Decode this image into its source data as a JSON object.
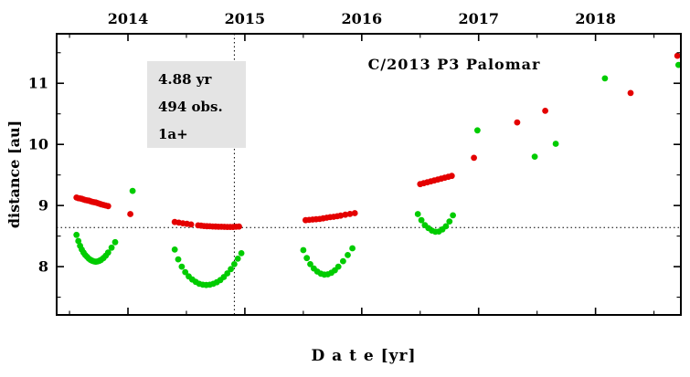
{
  "chart_data": {
    "type": "scatter",
    "title": "C/2013 P3 Palomar",
    "xlabel": "D a t e [yr]",
    "ylabel": "distance [au]",
    "xlim": [
      2013.39,
      2018.73
    ],
    "ylim": [
      7.21,
      11.81
    ],
    "x_ticks": [
      2014,
      2015,
      2016,
      2017,
      2018
    ],
    "x_tick_labels": [
      "2014",
      "2015",
      "2016",
      "2017",
      "2018"
    ],
    "y_ticks": [
      8,
      9,
      10,
      11
    ],
    "y_tick_labels": [
      "8",
      "9",
      "10",
      "11"
    ],
    "x_minor_step": 0.5,
    "y_minor_step": 0.5,
    "grid": false,
    "tick_label_position": {
      "x": "top",
      "y": "left"
    },
    "legend": "none",
    "marker_radius_px": 3.4,
    "reference_lines": [
      {
        "orientation": "vertical",
        "value": 2014.91,
        "style": "dotted"
      },
      {
        "orientation": "horizontal",
        "value": 8.64,
        "style": "dotted"
      }
    ],
    "annotation": {
      "lines": [
        "4.88 yr",
        "494 obs.",
        "1a+"
      ],
      "anchor": {
        "x": 2014.17,
        "y": 11.35
      },
      "background": "#e4e4e4"
    },
    "series": [
      {
        "name": "geocentric-distance",
        "color": "#00cc00",
        "marker": "circle",
        "points": [
          [
            2013.56,
            8.52
          ],
          [
            2013.575,
            8.42
          ],
          [
            2013.59,
            8.34
          ],
          [
            2013.605,
            8.28
          ],
          [
            2013.62,
            8.23
          ],
          [
            2013.635,
            8.19
          ],
          [
            2013.65,
            8.16
          ],
          [
            2013.665,
            8.13
          ],
          [
            2013.68,
            8.11
          ],
          [
            2013.695,
            8.095
          ],
          [
            2013.71,
            8.085
          ],
          [
            2013.725,
            8.08
          ],
          [
            2013.74,
            8.085
          ],
          [
            2013.755,
            8.095
          ],
          [
            2013.77,
            8.11
          ],
          [
            2013.79,
            8.14
          ],
          [
            2013.81,
            8.18
          ],
          [
            2013.83,
            8.23
          ],
          [
            2013.86,
            8.31
          ],
          [
            2013.89,
            8.4
          ],
          [
            2014.04,
            9.24
          ],
          [
            2014.4,
            8.28
          ],
          [
            2014.43,
            8.12
          ],
          [
            2014.46,
            8.0
          ],
          [
            2014.49,
            7.91
          ],
          [
            2014.52,
            7.84
          ],
          [
            2014.55,
            7.79
          ],
          [
            2014.58,
            7.75
          ],
          [
            2014.61,
            7.72
          ],
          [
            2014.64,
            7.705
          ],
          [
            2014.67,
            7.7
          ],
          [
            2014.7,
            7.705
          ],
          [
            2014.73,
            7.72
          ],
          [
            2014.76,
            7.745
          ],
          [
            2014.79,
            7.78
          ],
          [
            2014.82,
            7.83
          ],
          [
            2014.85,
            7.89
          ],
          [
            2014.88,
            7.96
          ],
          [
            2014.91,
            8.04
          ],
          [
            2014.94,
            8.13
          ],
          [
            2014.97,
            8.22
          ],
          [
            2015.5,
            8.27
          ],
          [
            2015.53,
            8.14
          ],
          [
            2015.56,
            8.04
          ],
          [
            2015.59,
            7.97
          ],
          [
            2015.62,
            7.92
          ],
          [
            2015.65,
            7.885
          ],
          [
            2015.68,
            7.87
          ],
          [
            2015.71,
            7.875
          ],
          [
            2015.74,
            7.9
          ],
          [
            2015.77,
            7.94
          ],
          [
            2015.8,
            8.0
          ],
          [
            2015.84,
            8.09
          ],
          [
            2015.88,
            8.19
          ],
          [
            2015.92,
            8.3
          ],
          [
            2016.48,
            8.86
          ],
          [
            2016.51,
            8.76
          ],
          [
            2016.54,
            8.68
          ],
          [
            2016.57,
            8.63
          ],
          [
            2016.6,
            8.59
          ],
          [
            2016.63,
            8.57
          ],
          [
            2016.66,
            8.575
          ],
          [
            2016.69,
            8.61
          ],
          [
            2016.72,
            8.66
          ],
          [
            2016.75,
            8.74
          ],
          [
            2016.78,
            8.84
          ],
          [
            2016.99,
            10.23
          ],
          [
            2017.48,
            9.8
          ],
          [
            2017.66,
            10.01
          ],
          [
            2018.08,
            11.08
          ],
          [
            2018.71,
            11.3
          ]
        ]
      },
      {
        "name": "heliocentric-distance",
        "color": "#e40000",
        "marker": "circle",
        "points": [
          [
            2013.56,
            9.13
          ],
          [
            2013.575,
            9.12
          ],
          [
            2013.59,
            9.115
          ],
          [
            2013.605,
            9.11
          ],
          [
            2013.62,
            9.1
          ],
          [
            2013.635,
            9.09
          ],
          [
            2013.65,
            9.085
          ],
          [
            2013.665,
            9.08
          ],
          [
            2013.68,
            9.07
          ],
          [
            2013.695,
            9.06
          ],
          [
            2013.71,
            9.055
          ],
          [
            2013.725,
            9.05
          ],
          [
            2013.74,
            9.04
          ],
          [
            2013.755,
            9.03
          ],
          [
            2013.77,
            9.02
          ],
          [
            2013.79,
            9.01
          ],
          [
            2013.81,
            9.0
          ],
          [
            2013.83,
            8.99
          ],
          [
            2014.02,
            8.86
          ],
          [
            2014.4,
            8.73
          ],
          [
            2014.435,
            8.72
          ],
          [
            2014.47,
            8.71
          ],
          [
            2014.505,
            8.7
          ],
          [
            2014.54,
            8.69
          ],
          [
            2014.6,
            8.675
          ],
          [
            2014.625,
            8.67
          ],
          [
            2014.65,
            8.665
          ],
          [
            2014.675,
            8.662
          ],
          [
            2014.7,
            8.66
          ],
          [
            2014.725,
            8.657
          ],
          [
            2014.75,
            8.655
          ],
          [
            2014.775,
            8.653
          ],
          [
            2014.8,
            8.652
          ],
          [
            2014.825,
            8.651
          ],
          [
            2014.85,
            8.65
          ],
          [
            2014.875,
            8.65
          ],
          [
            2014.9,
            8.65
          ],
          [
            2014.925,
            8.652
          ],
          [
            2014.95,
            8.655
          ],
          [
            2015.52,
            8.76
          ],
          [
            2015.55,
            8.765
          ],
          [
            2015.58,
            8.77
          ],
          [
            2015.61,
            8.775
          ],
          [
            2015.64,
            8.78
          ],
          [
            2015.67,
            8.79
          ],
          [
            2015.7,
            8.8
          ],
          [
            2015.73,
            8.81
          ],
          [
            2015.76,
            8.815
          ],
          [
            2015.79,
            8.825
          ],
          [
            2015.82,
            8.835
          ],
          [
            2015.86,
            8.85
          ],
          [
            2015.9,
            8.862
          ],
          [
            2015.94,
            8.875
          ],
          [
            2016.5,
            9.35
          ],
          [
            2016.53,
            9.365
          ],
          [
            2016.56,
            9.38
          ],
          [
            2016.59,
            9.395
          ],
          [
            2016.62,
            9.41
          ],
          [
            2016.65,
            9.425
          ],
          [
            2016.68,
            9.44
          ],
          [
            2016.71,
            9.455
          ],
          [
            2016.74,
            9.47
          ],
          [
            2016.77,
            9.485
          ],
          [
            2016.96,
            9.78
          ],
          [
            2017.33,
            10.36
          ],
          [
            2017.57,
            10.55
          ],
          [
            2018.3,
            10.84
          ],
          [
            2018.7,
            11.45
          ]
        ]
      }
    ]
  }
}
